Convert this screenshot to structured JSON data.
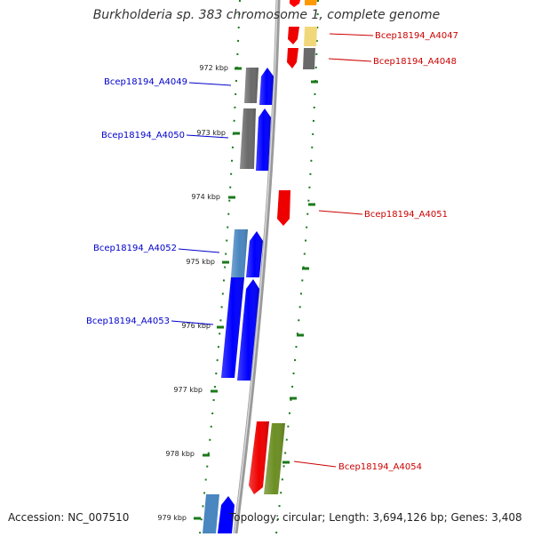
{
  "title": "Burkholderia sp. 383 chromosome 1, complete genome",
  "footer": {
    "accession": "Accession: NC_007510",
    "topology": "Topology: circular; Length: 3,694,126 bp; Genes: 3,408"
  },
  "tick_labels": [
    "972 kbp",
    "973 kbp",
    "974 kbp",
    "975 kbp",
    "976 kbp",
    "977 kbp",
    "978 kbp",
    "979 kbp"
  ],
  "gene_labels": [
    {
      "id": "Bcep18194_A4047",
      "strand": "reverse"
    },
    {
      "id": "Bcep18194_A4048",
      "strand": "reverse"
    },
    {
      "id": "Bcep18194_A4049",
      "strand": "forward"
    },
    {
      "id": "Bcep18194_A4050",
      "strand": "forward"
    },
    {
      "id": "Bcep18194_A4051",
      "strand": "reverse"
    },
    {
      "id": "Bcep18194_A4052",
      "strand": "forward"
    },
    {
      "id": "Bcep18194_A4053",
      "strand": "forward"
    },
    {
      "id": "Bcep18194_A4054",
      "strand": "reverse"
    }
  ],
  "colors": {
    "forward_label": "#0000cc",
    "reverse_label": "#cc0000",
    "forward_cds": "#0000ff",
    "reverse_cds": "#ff0000",
    "backbone": "#888888",
    "tick": "#1a7a1a",
    "feature_gray": "#6a6a6a",
    "feature_steelblue": "#4a86c0",
    "feature_olive": "#6b8e23",
    "feature_khaki": "#f0d87a",
    "feature_orange": "#ff9900"
  }
}
